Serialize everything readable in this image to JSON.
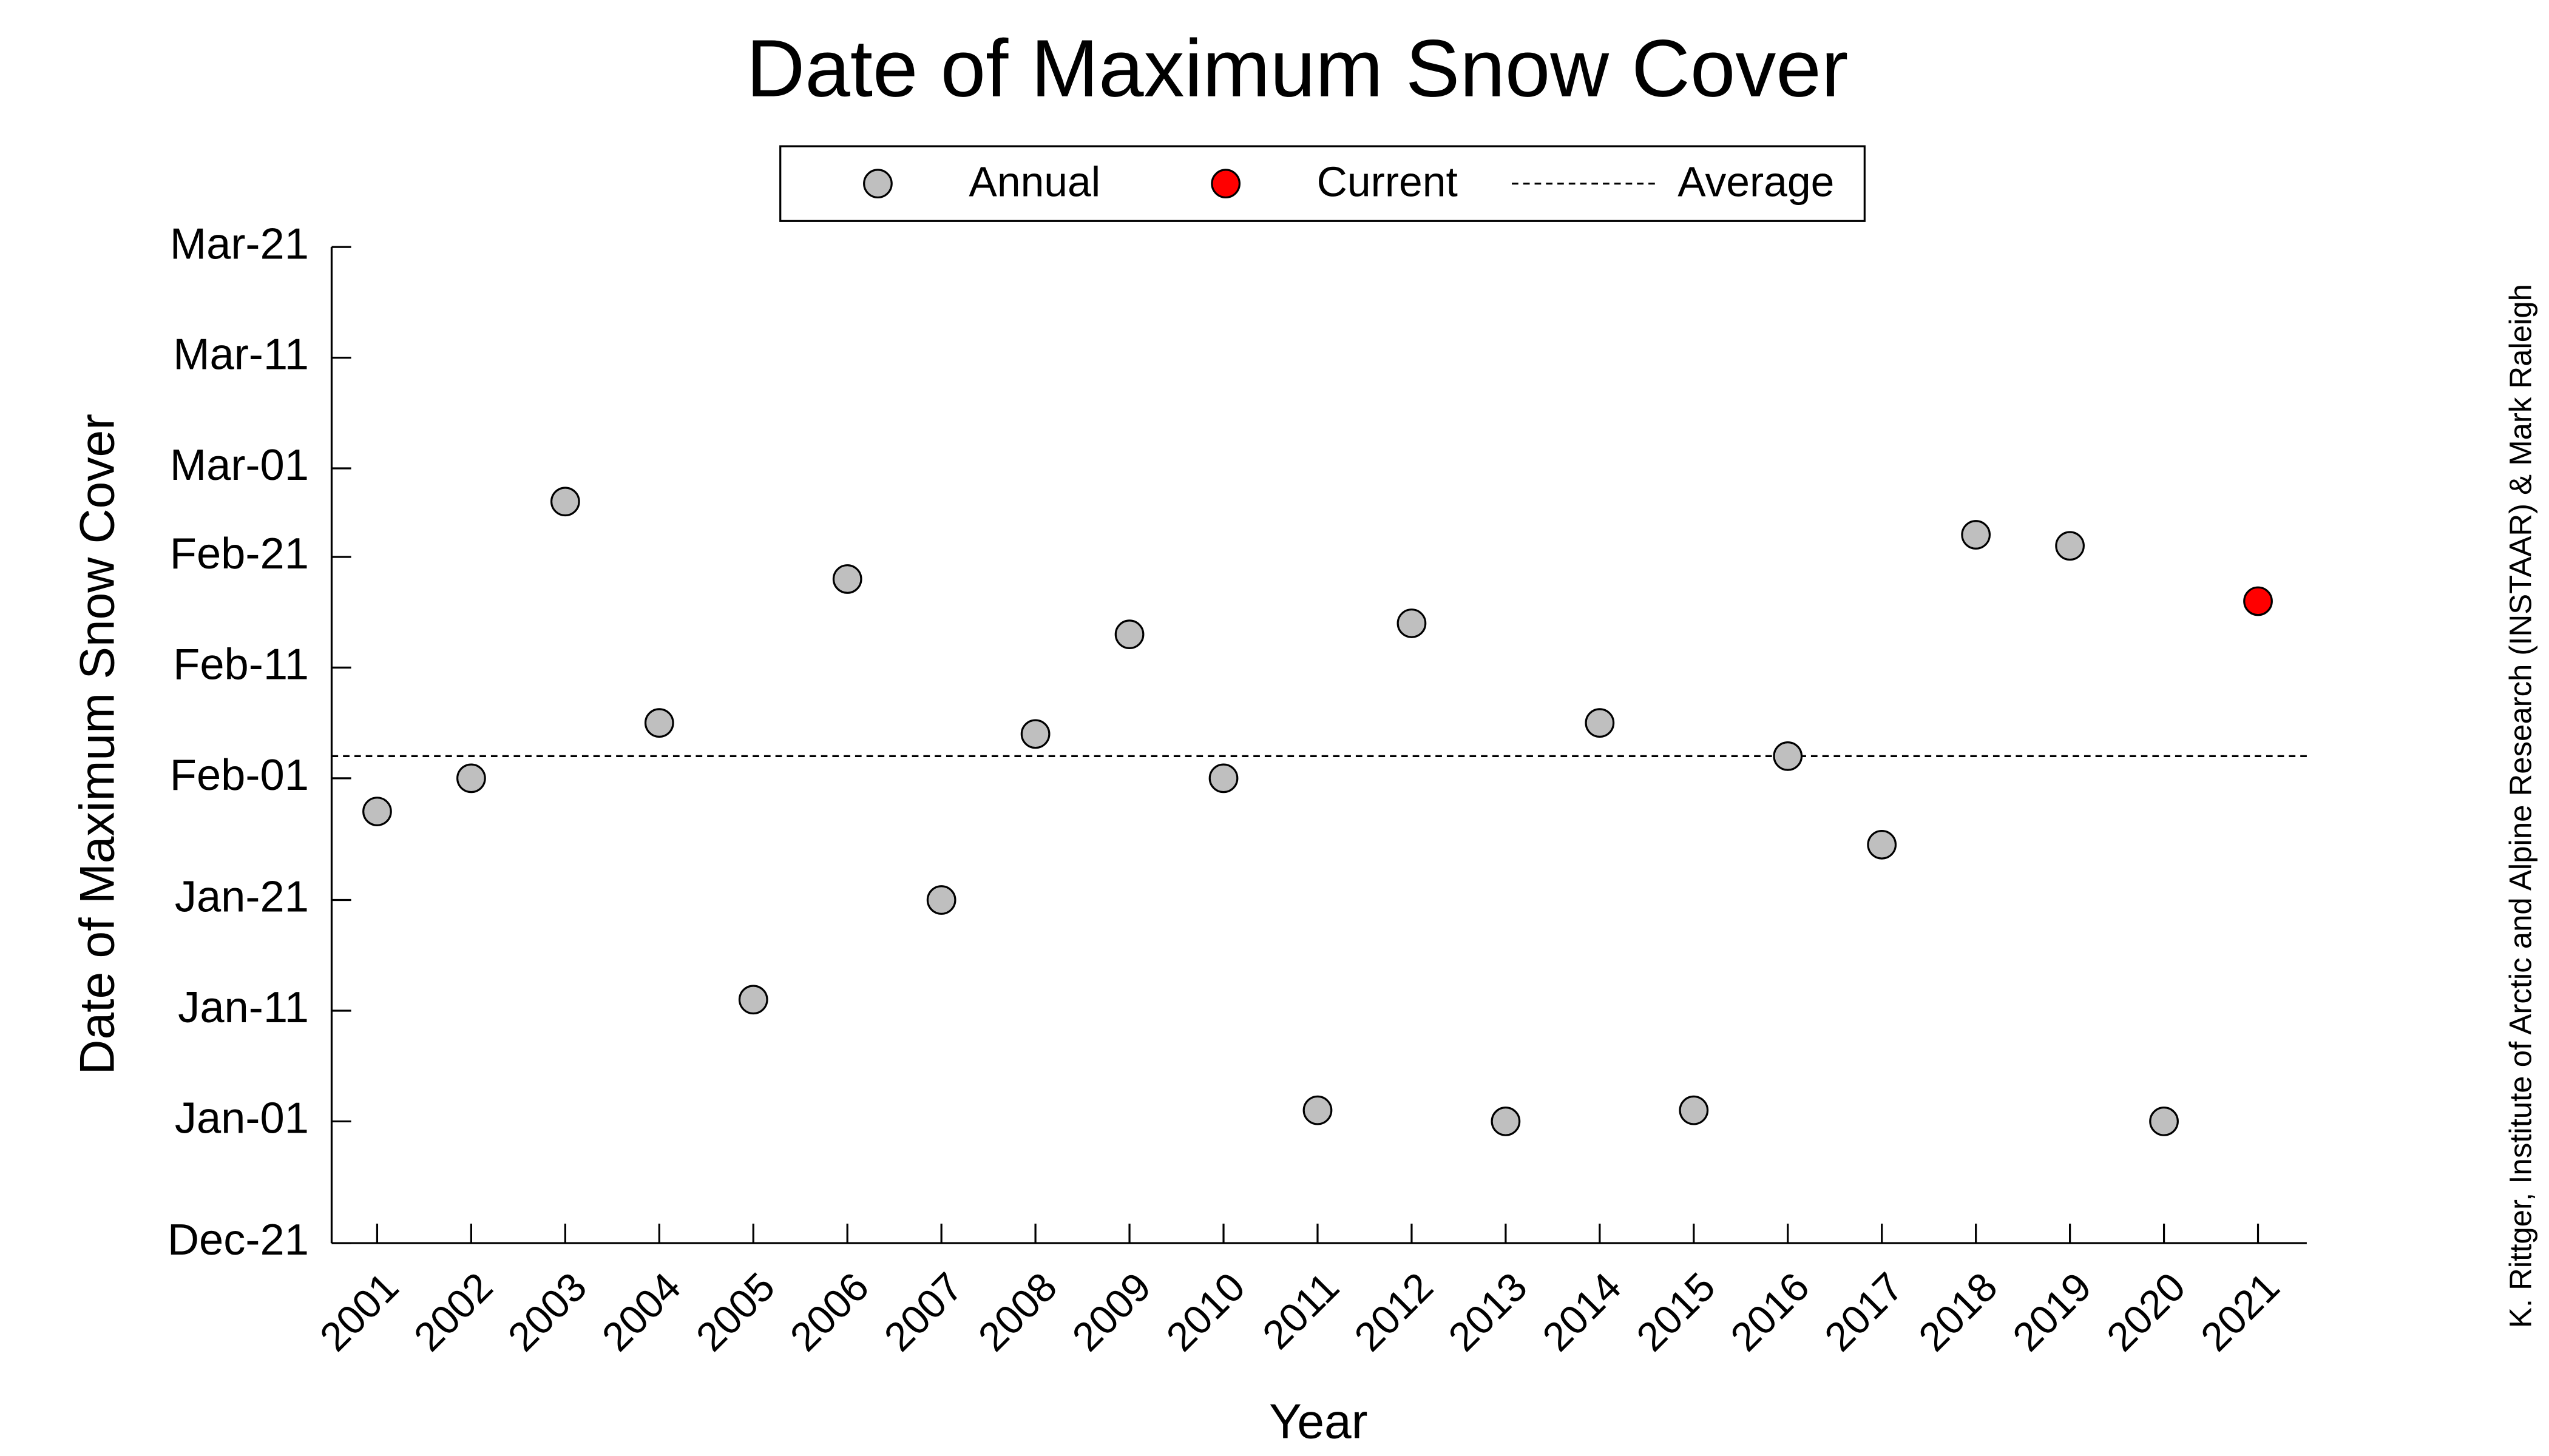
{
  "chart_data": {
    "type": "scatter",
    "title": "Date of Maximum Snow Cover",
    "x_label": "Year",
    "y_label": "Date of Maximum Snow Cover",
    "credit": "K. Rittger, Institute of Arctic and Alpine Research (INSTAAR) & Mark Raleigh",
    "categories": [
      "2001",
      "2002",
      "2003",
      "2004",
      "2005",
      "2006",
      "2007",
      "2008",
      "2009",
      "2010",
      "2011",
      "2012",
      "2013",
      "2014",
      "2015",
      "2016",
      "2017",
      "2018",
      "2019",
      "2020",
      "2021"
    ],
    "series": [
      {
        "name": "Annual",
        "color": "#bfbfbf",
        "values": [
          28,
          31,
          56,
          36,
          11,
          49,
          20,
          35,
          44,
          31,
          1,
          45,
          0,
          36,
          1,
          33,
          25,
          53,
          52,
          0,
          null
        ]
      },
      {
        "name": "Current",
        "color": "#ff0000",
        "values": [
          null,
          null,
          null,
          null,
          null,
          null,
          null,
          null,
          null,
          null,
          null,
          null,
          null,
          null,
          null,
          null,
          null,
          null,
          null,
          null,
          47
        ]
      }
    ],
    "average": {
      "name": "Average",
      "value": 33
    },
    "ylim": [
      -11,
      79
    ],
    "yticks": [
      {
        "value": -11,
        "label": "Dec-21"
      },
      {
        "value": 0,
        "label": "Jan-01"
      },
      {
        "value": 10,
        "label": "Jan-11"
      },
      {
        "value": 20,
        "label": "Jan-21"
      },
      {
        "value": 31,
        "label": "Feb-01"
      },
      {
        "value": 41,
        "label": "Feb-11"
      },
      {
        "value": 51,
        "label": "Feb-21"
      },
      {
        "value": 59,
        "label": "Mar-01"
      },
      {
        "value": 69,
        "label": "Mar-11"
      },
      {
        "value": 79,
        "label": "Mar-21"
      }
    ],
    "legend_position": "top"
  }
}
